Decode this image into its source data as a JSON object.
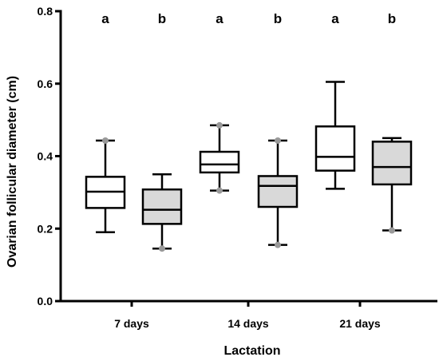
{
  "chart_data": {
    "type": "box",
    "title": "",
    "xlabel": "Lactation",
    "ylabel": "Ovarian follicular diameter (cm)",
    "ylim": [
      0,
      0.8
    ],
    "yticks": [
      "0.0",
      "0.2",
      "0.4",
      "0.6",
      "0.8"
    ],
    "grid": false,
    "categories": [
      "7 days",
      "14 days",
      "21 days"
    ],
    "colors": {
      "white_box": "#ffffff",
      "gray_box": "#d9d9d9",
      "outlier": "#999999"
    },
    "groups": [
      {
        "category": "7 days",
        "letter": "a",
        "fill": "white",
        "min": 0.19,
        "q1": 0.257,
        "median": 0.302,
        "q3": 0.343,
        "max": 0.443,
        "outliers": [
          0.443
        ]
      },
      {
        "category": "7 days",
        "letter": "b",
        "fill": "gray",
        "min": 0.145,
        "q1": 0.213,
        "median": 0.252,
        "q3": 0.308,
        "max": 0.35,
        "outliers": [
          0.145
        ]
      },
      {
        "category": "14 days",
        "letter": "a",
        "fill": "white",
        "min": 0.305,
        "q1": 0.355,
        "median": 0.377,
        "q3": 0.412,
        "max": 0.485,
        "outliers": [
          0.305,
          0.485
        ]
      },
      {
        "category": "14 days",
        "letter": "b",
        "fill": "gray",
        "min": 0.155,
        "q1": 0.26,
        "median": 0.318,
        "q3": 0.345,
        "max": 0.443,
        "outliers": [
          0.155,
          0.443
        ]
      },
      {
        "category": "21 days",
        "letter": "a",
        "fill": "white",
        "min": 0.31,
        "q1": 0.36,
        "median": 0.398,
        "q3": 0.482,
        "max": 0.605,
        "outliers": []
      },
      {
        "category": "21 days",
        "letter": "b",
        "fill": "gray",
        "min": 0.195,
        "q1": 0.322,
        "median": 0.37,
        "q3": 0.44,
        "max": 0.45,
        "outliers": [
          0.195
        ]
      }
    ]
  }
}
